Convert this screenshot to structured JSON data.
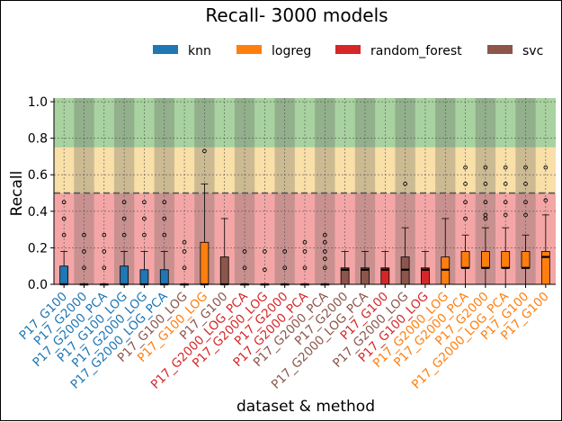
{
  "chart_data": {
    "type": "box",
    "title": "Recall- 3000 models",
    "xlabel": "dataset & method",
    "ylabel": "Recall",
    "ylim": [
      0,
      1.02
    ],
    "yticks": [
      "0.0",
      "0.2",
      "0.4",
      "0.6",
      "0.8",
      "1.0"
    ],
    "grid": true,
    "legend_position": "top",
    "reference_line": 0.5,
    "bands": [
      {
        "from": 0.0,
        "to": 0.5,
        "color": "#f4a6a6"
      },
      {
        "from": 0.5,
        "to": 0.75,
        "color": "#f9dfa8"
      },
      {
        "from": 0.75,
        "to": 1.02,
        "color": "#a8d2a0"
      }
    ],
    "legend": [
      {
        "name": "knn",
        "color": "#1f77b4"
      },
      {
        "name": "logreg",
        "color": "#ff7f0e"
      },
      {
        "name": "random_forest",
        "color": "#d62728"
      },
      {
        "name": "svc",
        "color": "#8c564b"
      }
    ],
    "categories": [
      {
        "label": "P17_G100",
        "method": "knn",
        "q1": 0.0,
        "median": 0.0,
        "q3": 0.1,
        "whislo": 0.0,
        "whishi": 0.18,
        "fliers": [
          0.27,
          0.36,
          0.45
        ]
      },
      {
        "label": "P17_G2000",
        "method": "knn",
        "q1": 0.0,
        "median": 0.0,
        "q3": 0.0,
        "whislo": 0.0,
        "whishi": 0.0,
        "fliers": [
          0.09,
          0.18,
          0.27
        ]
      },
      {
        "label": "P17_G2000_PCA",
        "method": "knn",
        "q1": 0.0,
        "median": 0.0,
        "q3": 0.0,
        "whislo": 0.0,
        "whishi": 0.0,
        "fliers": [
          0.09,
          0.18,
          0.27
        ]
      },
      {
        "label": "P17_G100_LOG",
        "method": "knn",
        "q1": 0.0,
        "median": 0.0,
        "q3": 0.1,
        "whislo": 0.0,
        "whishi": 0.18,
        "fliers": [
          0.27,
          0.36,
          0.45
        ]
      },
      {
        "label": "P17_G2000_LOG",
        "method": "knn",
        "q1": 0.0,
        "median": 0.0,
        "q3": 0.08,
        "whislo": 0.0,
        "whishi": 0.18,
        "fliers": [
          0.27,
          0.36,
          0.45
        ]
      },
      {
        "label": "P17_G2000_LOG_PCA",
        "method": "knn",
        "q1": 0.0,
        "median": 0.0,
        "q3": 0.08,
        "whislo": 0.0,
        "whishi": 0.18,
        "fliers": [
          0.27,
          0.36,
          0.45
        ]
      },
      {
        "label": "P17_G100_LOG",
        "method": "svc",
        "q1": 0.0,
        "median": 0.0,
        "q3": 0.0,
        "whislo": 0.0,
        "whishi": 0.0,
        "fliers": [
          0.09,
          0.18,
          0.23
        ]
      },
      {
        "label": "P17_G100_LOG",
        "method": "logreg",
        "q1": 0.0,
        "median": 0.0,
        "q3": 0.23,
        "whislo": 0.0,
        "whishi": 0.55,
        "fliers": [
          0.73
        ]
      },
      {
        "label": "P17_G100",
        "method": "svc",
        "q1": 0.0,
        "median": 0.0,
        "q3": 0.15,
        "whislo": 0.0,
        "whishi": 0.36,
        "fliers": []
      },
      {
        "label": "P17_G2000_LOG_PCA",
        "method": "random_forest",
        "q1": 0.0,
        "median": 0.0,
        "q3": 0.0,
        "whislo": 0.0,
        "whishi": 0.0,
        "fliers": [
          0.09,
          0.18
        ]
      },
      {
        "label": "P17_G2000_LOG",
        "method": "random_forest",
        "q1": 0.0,
        "median": 0.0,
        "q3": 0.0,
        "whislo": 0.0,
        "whishi": 0.0,
        "fliers": [
          0.08,
          0.18
        ]
      },
      {
        "label": "P17_G2000",
        "method": "random_forest",
        "q1": 0.0,
        "median": 0.0,
        "q3": 0.0,
        "whislo": 0.0,
        "whishi": 0.0,
        "fliers": [
          0.09,
          0.18
        ]
      },
      {
        "label": "P17_G2000_PCA",
        "method": "random_forest",
        "q1": 0.0,
        "median": 0.0,
        "q3": 0.0,
        "whislo": 0.0,
        "whishi": 0.0,
        "fliers": [
          0.09,
          0.18,
          0.23
        ]
      },
      {
        "label": "P17_G2000_PCA",
        "method": "svc",
        "q1": 0.0,
        "median": 0.0,
        "q3": 0.0,
        "whislo": 0.0,
        "whishi": 0.0,
        "fliers": [
          0.09,
          0.14,
          0.18,
          0.23,
          0.27
        ]
      },
      {
        "label": "P17_G2000",
        "method": "svc",
        "q1": 0.0,
        "median": 0.08,
        "q3": 0.09,
        "whislo": 0.0,
        "whishi": 0.18,
        "fliers": []
      },
      {
        "label": "P17_G2000_LOG_PCA",
        "method": "svc",
        "q1": 0.0,
        "median": 0.08,
        "q3": 0.09,
        "whislo": 0.0,
        "whishi": 0.18,
        "fliers": []
      },
      {
        "label": "P17_G100",
        "method": "random_forest",
        "q1": 0.0,
        "median": 0.08,
        "q3": 0.09,
        "whislo": 0.0,
        "whishi": 0.18,
        "fliers": []
      },
      {
        "label": "P17_G2000_LOG",
        "method": "svc",
        "q1": 0.0,
        "median": 0.08,
        "q3": 0.15,
        "whislo": 0.0,
        "whishi": 0.31,
        "fliers": [
          0.55
        ]
      },
      {
        "label": "P17_G100_LOG",
        "method": "random_forest",
        "q1": 0.0,
        "median": 0.08,
        "q3": 0.09,
        "whislo": 0.0,
        "whishi": 0.18,
        "fliers": []
      },
      {
        "label": "P17_G2000_LOG",
        "method": "logreg",
        "q1": 0.0,
        "median": 0.08,
        "q3": 0.15,
        "whislo": 0.0,
        "whishi": 0.36,
        "fliers": []
      },
      {
        "label": "P17_G2000_PCA",
        "method": "logreg",
        "q1": 0.09,
        "median": 0.09,
        "q3": 0.18,
        "whislo": 0.0,
        "whishi": 0.27,
        "fliers": [
          0.36,
          0.45,
          0.55,
          0.64
        ]
      },
      {
        "label": "P17_G2000",
        "method": "logreg",
        "q1": 0.09,
        "median": 0.09,
        "q3": 0.18,
        "whislo": 0.0,
        "whishi": 0.31,
        "fliers": [
          0.36,
          0.38,
          0.45,
          0.55,
          0.64
        ]
      },
      {
        "label": "P17_G2000_LOG_PCA",
        "method": "logreg",
        "q1": 0.09,
        "median": 0.09,
        "q3": 0.18,
        "whislo": 0.0,
        "whishi": 0.31,
        "fliers": [
          0.38,
          0.45,
          0.55,
          0.64
        ]
      },
      {
        "label": "P17_G100",
        "method": "logreg",
        "q1": 0.09,
        "median": 0.09,
        "q3": 0.18,
        "whislo": 0.0,
        "whishi": 0.27,
        "fliers": [
          0.38,
          0.45,
          0.55,
          0.64
        ]
      },
      {
        "label": "P17_G100",
        "method": "logreg",
        "q1": 0.0,
        "median": 0.15,
        "q3": 0.18,
        "whislo": 0.0,
        "whishi": 0.38,
        "fliers": [
          0.46,
          0.64
        ]
      }
    ]
  }
}
